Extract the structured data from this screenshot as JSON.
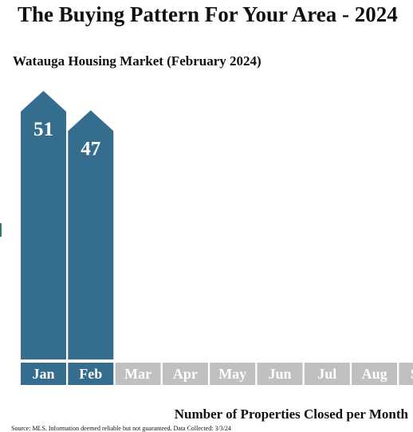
{
  "header": {
    "title": "The Buying Pattern For Your Area - 2024",
    "subtitle": "Watauga Housing Market (February 2024)"
  },
  "footer": {
    "caption": "Number of Properties Closed per Month",
    "source": "Source: MLS. Information deemed reliable but not guaranteed. Data Collected: 3/3/24"
  },
  "colors": {
    "active_bar": "#356d8e",
    "inactive_label": "#c0c0c0",
    "label_text": "#ffffff"
  },
  "chart_data": {
    "type": "bar",
    "title": "The Buying Pattern For Your Area - 2024",
    "subtitle": "Watauga Housing Market (February 2024)",
    "xlabel": "Number of Properties Closed per Month",
    "ylabel": "",
    "categories": [
      "Jan",
      "Feb",
      "Mar",
      "Apr",
      "May",
      "Jun",
      "Jul",
      "Aug",
      "Sep"
    ],
    "values": [
      51,
      47,
      null,
      null,
      null,
      null,
      null,
      null,
      null
    ],
    "ylim": [
      0,
      51
    ],
    "grid": false,
    "legend": "none"
  }
}
